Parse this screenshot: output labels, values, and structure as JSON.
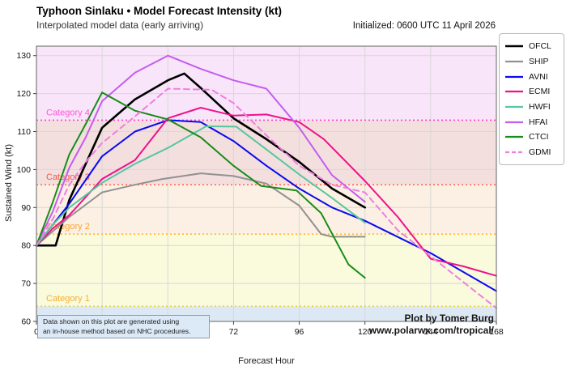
{
  "header": {
    "title": "Typhoon Sinlaku • Model Forecast Intensity (kt)",
    "subtitle": "Interpolated model data (early arriving)",
    "initialized": "Initialized: 0600 UTC 11 April 2026"
  },
  "footnote": {
    "line1": "Data shown on this plot are generated using",
    "line2": "an in-house method based on NHC procedures."
  },
  "credits": {
    "line1": "Plot by Tomer Burg",
    "line2": "www.polarwx.com/tropical/"
  },
  "chart_data": {
    "type": "line",
    "title": "Typhoon Sinlaku • Model Forecast Intensity (kt)",
    "xlabel": "Forecast Hour",
    "ylabel": "Sustained Wind (kt)",
    "xlim": [
      0,
      168
    ],
    "ylim": [
      60,
      132.5
    ],
    "x_ticks": [
      0,
      24,
      48,
      72,
      96,
      120,
      144,
      168
    ],
    "y_ticks": [
      60,
      70,
      80,
      90,
      100,
      110,
      120,
      130
    ],
    "grid": true,
    "grid_color": "#d8d8d8",
    "border_color": "#7d7d7d",
    "legend_position": "outside-right",
    "bands": [
      {
        "name": "tropical-storm",
        "from": 60,
        "to": 64,
        "color": "#dce8f4"
      },
      {
        "name": "category-1",
        "from": 64,
        "to": 83,
        "color": "#fafadd"
      },
      {
        "name": "category-2",
        "from": 83,
        "to": 96,
        "color": "#fbf0e3"
      },
      {
        "name": "category-3",
        "from": 96,
        "to": 113,
        "color": "#f4dfdf"
      },
      {
        "name": "category-4",
        "from": 113,
        "to": 132.5,
        "color": "#f9e5f9"
      }
    ],
    "thresholds": [
      {
        "value": 64,
        "label": "Category 1",
        "line_color": "#e6d23c",
        "label_color": "#f5b02e"
      },
      {
        "value": 83,
        "label": "Category 2",
        "line_color": "#ffb43c",
        "label_color": "#ffa22e"
      },
      {
        "value": 96,
        "label": "Category 3",
        "line_color": "#ff6a50",
        "label_color": "#f25648"
      },
      {
        "value": 113,
        "label": "Category 4",
        "line_color": "#ff3fd0",
        "label_color": "#ff56d8"
      }
    ],
    "series": [
      {
        "name": "OFCL",
        "color": "#000000",
        "width": 2.6,
        "dash": "",
        "points": [
          [
            0,
            80
          ],
          [
            7,
            80
          ],
          [
            12,
            92
          ],
          [
            24,
            111
          ],
          [
            36,
            118.5
          ],
          [
            48,
            123.5
          ],
          [
            54,
            125.3
          ],
          [
            60,
            121.5
          ],
          [
            72,
            113.5
          ],
          [
            84,
            108
          ],
          [
            96,
            102
          ],
          [
            108,
            95
          ],
          [
            120,
            90
          ]
        ]
      },
      {
        "name": "SHIP",
        "color": "#919191",
        "width": 2,
        "dash": "",
        "points": [
          [
            0,
            80
          ],
          [
            12,
            87.5
          ],
          [
            24,
            94
          ],
          [
            36,
            96
          ],
          [
            46,
            97.5
          ],
          [
            60,
            99
          ],
          [
            72,
            98.3
          ],
          [
            84,
            96.3
          ],
          [
            96,
            90.5
          ],
          [
            104,
            83
          ],
          [
            108,
            82.3
          ],
          [
            120,
            82.3
          ]
        ]
      },
      {
        "name": "AVNI",
        "color": "#0a0af0",
        "width": 2,
        "dash": "",
        "points": [
          [
            0,
            80
          ],
          [
            6,
            85.5
          ],
          [
            12,
            91
          ],
          [
            24,
            103.5
          ],
          [
            36,
            110
          ],
          [
            48,
            113
          ],
          [
            60,
            112.5
          ],
          [
            72,
            107.5
          ],
          [
            84,
            101
          ],
          [
            96,
            95
          ],
          [
            108,
            90
          ],
          [
            120,
            86.5
          ],
          [
            144,
            78
          ],
          [
            168,
            68
          ]
        ]
      },
      {
        "name": "ECMI",
        "color": "#ee1289",
        "width": 2,
        "dash": "",
        "points": [
          [
            0,
            80
          ],
          [
            6,
            84.5
          ],
          [
            12,
            88
          ],
          [
            24,
            97.5
          ],
          [
            36,
            102.5
          ],
          [
            48,
            113.5
          ],
          [
            60,
            116.3
          ],
          [
            72,
            114.2
          ],
          [
            84,
            114.5
          ],
          [
            96,
            112.5
          ],
          [
            105,
            108
          ],
          [
            120,
            97
          ],
          [
            132,
            87.5
          ],
          [
            144,
            76.5
          ],
          [
            156,
            74.5
          ],
          [
            168,
            72
          ]
        ]
      },
      {
        "name": "HWFI",
        "color": "#56c6a0",
        "width": 2,
        "dash": "",
        "points": [
          [
            0,
            80
          ],
          [
            6,
            85.5
          ],
          [
            12,
            90
          ],
          [
            24,
            96.5
          ],
          [
            36,
            101.5
          ],
          [
            48,
            105.7
          ],
          [
            62,
            111.4
          ],
          [
            73,
            111.3
          ],
          [
            84,
            105.3
          ],
          [
            96,
            98.7
          ],
          [
            108,
            92.5
          ],
          [
            120,
            86
          ]
        ]
      },
      {
        "name": "HFAI",
        "color": "#c35df0",
        "width": 2,
        "dash": "",
        "points": [
          [
            0,
            80
          ],
          [
            6,
            89
          ],
          [
            12,
            100.5
          ],
          [
            18,
            108.5
          ],
          [
            24,
            118
          ],
          [
            36,
            125.5
          ],
          [
            48,
            130
          ],
          [
            60,
            126.5
          ],
          [
            72,
            123.5
          ],
          [
            84,
            121.3
          ],
          [
            96,
            111
          ],
          [
            108,
            98.5
          ],
          [
            120,
            91.5
          ]
        ]
      },
      {
        "name": "CTCI",
        "color": "#188c18",
        "width": 2,
        "dash": "",
        "points": [
          [
            0,
            80
          ],
          [
            6,
            91.5
          ],
          [
            12,
            104
          ],
          [
            18,
            112
          ],
          [
            24,
            120.3
          ],
          [
            36,
            115.5
          ],
          [
            48,
            113.2
          ],
          [
            60,
            108.5
          ],
          [
            72,
            101
          ],
          [
            82,
            95.7
          ],
          [
            95,
            94.5
          ],
          [
            104,
            88.5
          ],
          [
            114,
            75
          ],
          [
            120,
            71.5
          ]
        ]
      },
      {
        "name": "GDMI",
        "color": "#f07ee1",
        "width": 2,
        "dash": "7 5",
        "points": [
          [
            0,
            80
          ],
          [
            6,
            87
          ],
          [
            12,
            96
          ],
          [
            18,
            102
          ],
          [
            24,
            107
          ],
          [
            36,
            114
          ],
          [
            48,
            121.3
          ],
          [
            64,
            121
          ],
          [
            72,
            117.5
          ],
          [
            84,
            109
          ],
          [
            96,
            101
          ],
          [
            108,
            96
          ],
          [
            120,
            94
          ],
          [
            132,
            84
          ],
          [
            168,
            63.5
          ]
        ]
      }
    ]
  }
}
